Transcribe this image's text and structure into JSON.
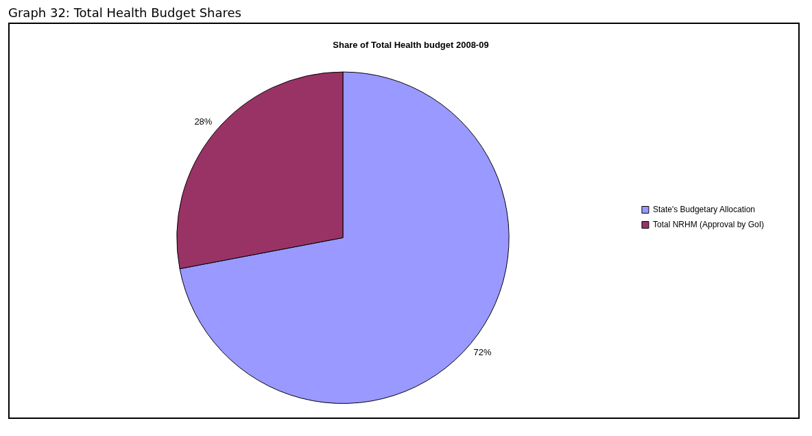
{
  "chart_data": {
    "type": "pie",
    "title": "Share of Total Health budget 2008-09",
    "annotations": [
      "Graph 32: Total Health Budget Shares"
    ],
    "categories": [
      "State's Budgetary Allocation",
      "Total NRHM (Approval by GoI)"
    ],
    "values": [
      72,
      28
    ],
    "value_labels": [
      "72%",
      "28%"
    ],
    "colors": [
      "#9999ff",
      "#993366"
    ],
    "legend": "right"
  }
}
